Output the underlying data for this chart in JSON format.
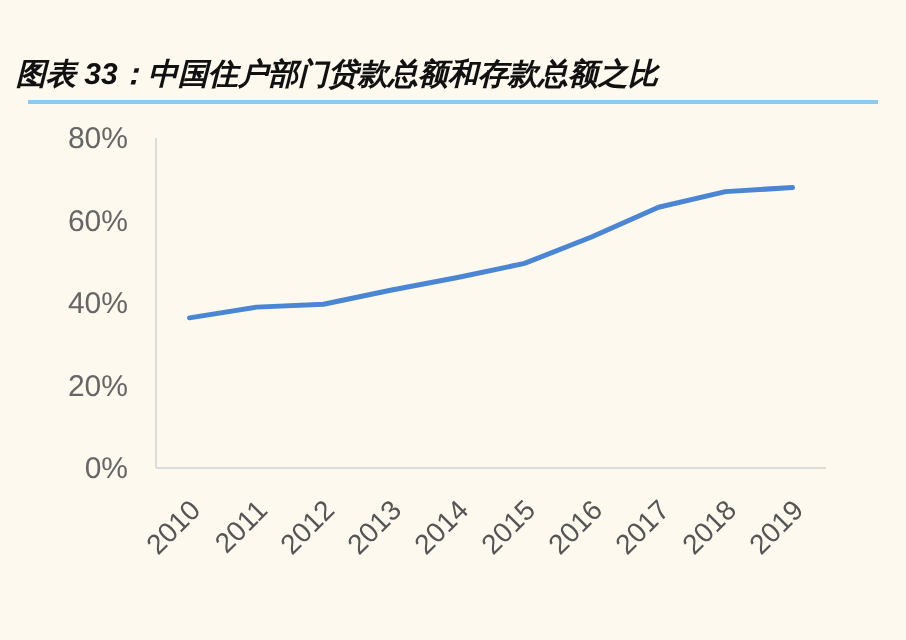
{
  "chart_data": {
    "type": "line",
    "title": "图表 33：中国住户部门贷款总额和存款总额之比",
    "categories": [
      "2010",
      "2011",
      "2012",
      "2013",
      "2014",
      "2015",
      "2016",
      "2017",
      "2018",
      "2019"
    ],
    "series": [
      {
        "color": "#4a86d4",
        "values": [
          36.4,
          39.0,
          39.7,
          43.1,
          46.2,
          49.6,
          56.0,
          63.2,
          67.0,
          68.0
        ]
      }
    ],
    "ylim": [
      0,
      80
    ],
    "yticks": [
      {
        "value": 0,
        "label": "0%"
      },
      {
        "value": 20,
        "label": "20%"
      },
      {
        "value": 40,
        "label": "40%"
      },
      {
        "value": 60,
        "label": "60%"
      },
      {
        "value": 80,
        "label": "80%"
      }
    ],
    "grid": false,
    "marker": "none",
    "line_style": "solid"
  }
}
